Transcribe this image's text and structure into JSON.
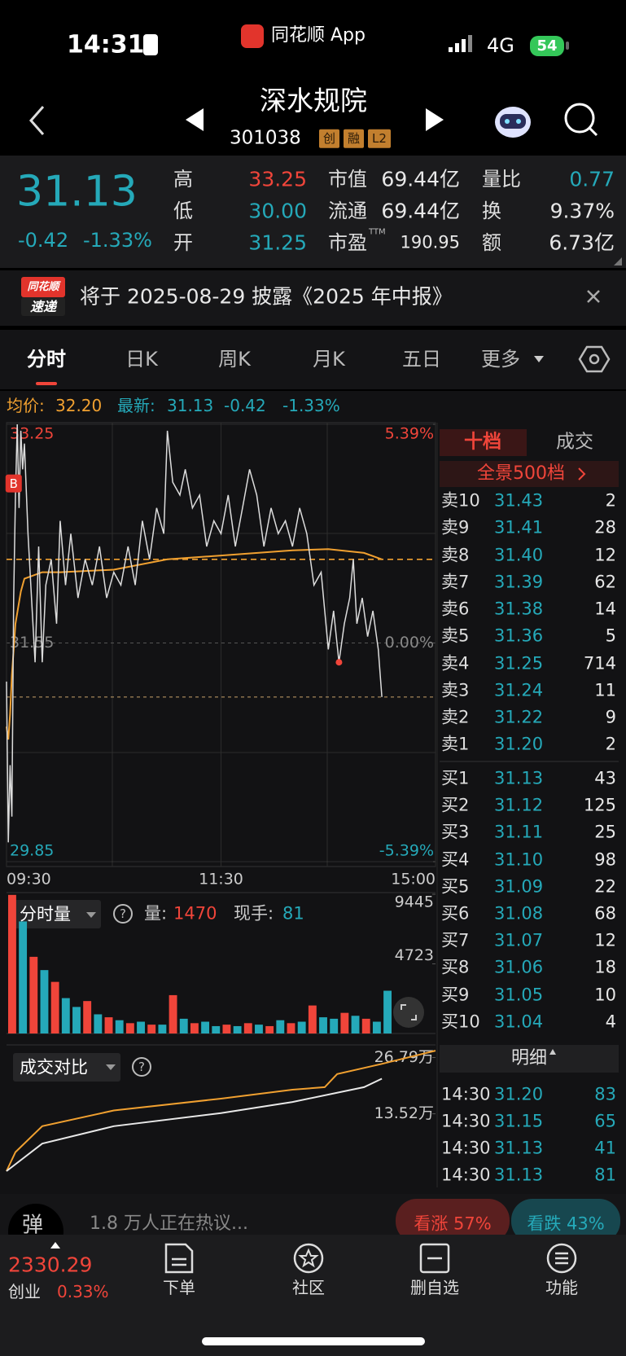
{
  "status_bar": {
    "time": "14:31",
    "app": "同花顺 App",
    "network": "4G",
    "battery": "54"
  },
  "header": {
    "title": "深水规院",
    "code": "301038",
    "badges": [
      "创",
      "融",
      "L2"
    ]
  },
  "quote": {
    "price": "31.13",
    "change": "-0.42",
    "change_pct": "-1.33%",
    "stats": [
      {
        "label": "高",
        "value": "33.25"
      },
      {
        "label": "低",
        "value": "30.00"
      },
      {
        "label": "开",
        "value": "31.25"
      },
      {
        "label": "市值",
        "value": "69.44亿"
      },
      {
        "label": "流通",
        "value": "69.44亿"
      },
      {
        "label": "市盈",
        "sup": "TTM",
        "value": "190.95"
      },
      {
        "label": "量比",
        "value": "0.77"
      },
      {
        "label": "换",
        "value": "9.37%"
      },
      {
        "label": "额",
        "value": "6.73亿"
      }
    ]
  },
  "notice": {
    "logo": [
      "同花顺",
      "速递"
    ],
    "text": "将于 2025-08-29 披露《2025 年中报》"
  },
  "tabs": [
    "分时",
    "日K",
    "周K",
    "月K",
    "五日",
    "更多"
  ],
  "info_line": {
    "avg_label": "均价:",
    "avg": "32.20",
    "latest_label": "最新:",
    "latest": "31.13",
    "change": "-0.42",
    "change_pct": "-1.33%"
  },
  "chart_data": [
    {
      "type": "line",
      "xlim": [
        0,
        240
      ],
      "xticks": [
        {
          "value": 0,
          "label": "09:30"
        },
        {
          "value": 120,
          "label": "11:30"
        },
        {
          "value": 240,
          "label": "15:00"
        }
      ],
      "ylim": [
        29.85,
        33.25
      ],
      "yticks": [
        33.25,
        31.55,
        29.85
      ],
      "y2lim": [
        -5.39,
        5.39
      ],
      "y2ticks": [
        {
          "value": 5.39,
          "label": "5.39%"
        },
        {
          "value": 0,
          "label": "0.00%"
        },
        {
          "value": -5.39,
          "label": "-5.39%"
        }
      ],
      "reference_lines": [
        {
          "value": 32.2,
          "color": "#f0a030"
        },
        {
          "value": 31.13,
          "color": "#c8a46a"
        }
      ],
      "series": [
        {
          "color": "#dcdcdc",
          "x": [
            0,
            1,
            2,
            3,
            4,
            5,
            6,
            7,
            8,
            9,
            10,
            12,
            14,
            16,
            18,
            20,
            22,
            25,
            28,
            30,
            33,
            36,
            40,
            44,
            48,
            52,
            56,
            60,
            64,
            68,
            72,
            76,
            80,
            84,
            88,
            90,
            93,
            97,
            100,
            104,
            108,
            112,
            116,
            120,
            124,
            128,
            132,
            136,
            140,
            144,
            148,
            152,
            156,
            160,
            164,
            168,
            172,
            176,
            180,
            183,
            186,
            189,
            192,
            194,
            196,
            199,
            202,
            205,
            208,
            210
          ],
          "values": [
            31.25,
            30.0,
            30.6,
            30.2,
            31.9,
            32.7,
            33.25,
            32.6,
            33.2,
            32.9,
            33.1,
            32.4,
            31.9,
            31.4,
            32.3,
            31.4,
            32.0,
            32.2,
            31.7,
            32.5,
            32.0,
            32.4,
            31.9,
            32.2,
            32.0,
            32.3,
            31.9,
            32.1,
            32.0,
            32.3,
            32.0,
            32.5,
            32.2,
            32.6,
            32.4,
            33.2,
            32.8,
            32.7,
            32.9,
            32.6,
            32.7,
            32.3,
            32.5,
            32.4,
            32.7,
            32.3,
            32.6,
            32.9,
            32.7,
            32.3,
            32.6,
            32.4,
            32.5,
            32.3,
            32.6,
            32.4,
            32.0,
            32.1,
            31.5,
            31.8,
            31.4,
            31.7,
            31.9,
            32.2,
            31.7,
            31.9,
            31.6,
            31.8,
            31.5,
            31.13
          ]
        },
        {
          "color": "#f0a030",
          "x": [
            0,
            1,
            2,
            3,
            5,
            8,
            10,
            20,
            30,
            60,
            90,
            120,
            160,
            180,
            200,
            210
          ],
          "values": [
            30.9,
            30.8,
            31.0,
            31.3,
            31.7,
            31.95,
            32.05,
            32.1,
            32.1,
            32.12,
            32.2,
            32.23,
            32.27,
            32.28,
            32.25,
            32.2
          ]
        }
      ],
      "annotations": [
        {
          "x": 4,
          "y": 32.79,
          "label": "B"
        }
      ],
      "markers": [
        {
          "x": 186,
          "y": 31.4,
          "color": "#f0453a"
        }
      ]
    },
    {
      "type": "bar",
      "xlim": [
        0,
        240
      ],
      "ylim": [
        0,
        9445
      ],
      "yticks": [
        9445,
        4723
      ],
      "x": [
        0,
        6,
        12,
        18,
        24,
        30,
        36,
        42,
        48,
        54,
        60,
        66,
        72,
        78,
        84,
        90,
        96,
        102,
        108,
        114,
        120,
        126,
        132,
        138,
        144,
        150,
        156,
        162,
        168,
        174,
        180,
        186,
        192,
        198,
        204,
        210
      ],
      "values": [
        9400,
        7600,
        5200,
        4300,
        3500,
        2400,
        1800,
        2200,
        1300,
        1100,
        900,
        700,
        800,
        600,
        600,
        2600,
        1000,
        700,
        800,
        500,
        600,
        500,
        700,
        600,
        500,
        900,
        700,
        800,
        1900,
        1100,
        1000,
        1400,
        1200,
        1000,
        800,
        2900
      ],
      "colors": [
        "#f0453a",
        "#25a9b9",
        "#f0453a",
        "#25a9b9",
        "#f0453a",
        "#25a9b9",
        "#25a9b9",
        "#f0453a",
        "#25a9b9",
        "#f0453a",
        "#25a9b9",
        "#f0453a",
        "#25a9b9",
        "#f0453a",
        "#25a9b9",
        "#f0453a",
        "#25a9b9",
        "#f0453a",
        "#25a9b9",
        "#25a9b9",
        "#f0453a",
        "#25a9b9",
        "#f0453a",
        "#25a9b9",
        "#f0453a",
        "#25a9b9",
        "#f0453a",
        "#25a9b9",
        "#f0453a",
        "#25a9b9",
        "#25a9b9",
        "#f0453a",
        "#25a9b9",
        "#f0453a",
        "#25a9b9",
        "#25a9b9"
      ],
      "header": {
        "selector": "分时量",
        "help": "?",
        "volume_label": "量:",
        "volume": "1470",
        "hand_label": "现手:",
        "hand": "81"
      }
    },
    {
      "type": "line",
      "xlim": [
        0,
        240
      ],
      "ylim": [
        0,
        29
      ],
      "yticks": [
        {
          "value": 26.79,
          "label": "26.79万"
        },
        {
          "value": 13.52,
          "label": "13.52万"
        }
      ],
      "series": [
        {
          "color": "#f0a030",
          "x": [
            0,
            5,
            20,
            60,
            120,
            160,
            178,
            185,
            210,
            240
          ],
          "values": [
            0,
            4.5,
            10.6,
            14.3,
            17.1,
            19.2,
            19.8,
            22.9,
            25.3,
            28.4
          ]
        },
        {
          "color": "#e8e8e8",
          "x": [
            0,
            20,
            60,
            120,
            160,
            200,
            210
          ],
          "values": [
            0,
            6.5,
            10.6,
            13.7,
            16.3,
            19.8,
            21.8
          ]
        }
      ],
      "header": {
        "selector": "成交对比",
        "help": "?"
      }
    }
  ],
  "order_book": {
    "tabs": [
      "十档",
      "成交"
    ],
    "panorama": "全景500档",
    "asks": [
      [
        "卖10",
        "31.43",
        "2"
      ],
      [
        "卖9",
        "31.41",
        "28"
      ],
      [
        "卖8",
        "31.40",
        "12"
      ],
      [
        "卖7",
        "31.39",
        "62"
      ],
      [
        "卖6",
        "31.38",
        "14"
      ],
      [
        "卖5",
        "31.36",
        "5"
      ],
      [
        "卖4",
        "31.25",
        "714"
      ],
      [
        "卖3",
        "31.24",
        "11"
      ],
      [
        "卖2",
        "31.22",
        "9"
      ],
      [
        "卖1",
        "31.20",
        "2"
      ]
    ],
    "bids": [
      [
        "买1",
        "31.13",
        "43"
      ],
      [
        "买2",
        "31.12",
        "125"
      ],
      [
        "买3",
        "31.11",
        "25"
      ],
      [
        "买4",
        "31.10",
        "98"
      ],
      [
        "买5",
        "31.09",
        "22"
      ],
      [
        "买6",
        "31.08",
        "68"
      ],
      [
        "买7",
        "31.07",
        "12"
      ],
      [
        "买8",
        "31.06",
        "18"
      ],
      [
        "买9",
        "31.05",
        "10"
      ],
      [
        "买10",
        "31.04",
        "4"
      ]
    ],
    "detail_title": "明细",
    "trades": [
      [
        "14:30",
        "31.20",
        "83"
      ],
      [
        "14:30",
        "31.15",
        "65"
      ],
      [
        "14:30",
        "31.13",
        "41"
      ],
      [
        "14:30",
        "31.13",
        "81"
      ]
    ]
  },
  "discussion": {
    "icon": "弹",
    "text": "1.8 万人正在热议...",
    "bull": "看涨 57%",
    "bear": "看跌 43%"
  },
  "bottom_nav": {
    "index": {
      "value": "2330.29",
      "name": "创业",
      "change": "0.33%"
    },
    "items": [
      "下单",
      "社区",
      "删自选",
      "功能"
    ]
  }
}
